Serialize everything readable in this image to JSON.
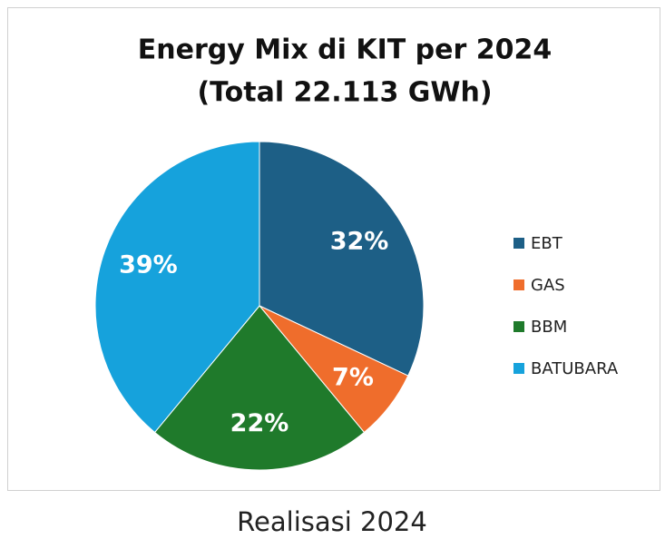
{
  "chart_data": {
    "type": "pie",
    "title": "Energy Mix di KIT per 2024",
    "subtitle": "(Total 22.113 GWh)",
    "categories": [
      "EBT",
      "GAS",
      "BBM",
      "BATUBARA"
    ],
    "values": [
      32,
      7,
      22,
      39
    ],
    "value_labels": [
      "32%",
      "7%",
      "22%",
      "39%"
    ],
    "colors": [
      "#1d5f86",
      "#ef6d2c",
      "#1f7a2b",
      "#16a2dc"
    ],
    "legend": "right",
    "caption": "Realisasi 2024"
  }
}
